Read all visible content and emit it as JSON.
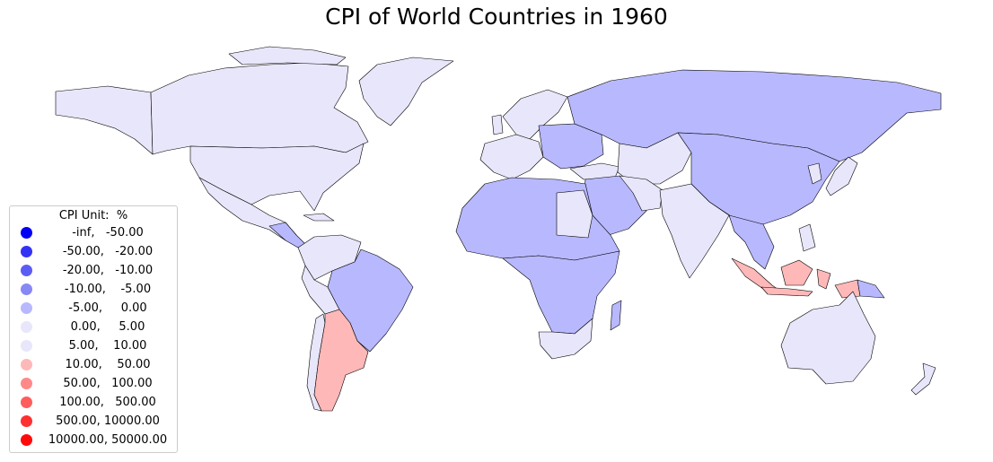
{
  "title": "CPI of World Countries in 1960",
  "legend": {
    "title": "CPI Unit:  %",
    "items": [
      {
        "label": "-inf,   -50.00",
        "color": "#0000f5"
      },
      {
        "label": "-50.00,   -20.00",
        "color": "#3333f5"
      },
      {
        "label": "-20.00,   -10.00",
        "color": "#5c5cf5"
      },
      {
        "label": "-10.00,    -5.00",
        "color": "#8888f5"
      },
      {
        "label": "-5.00,     0.00",
        "color": "#b8b8ff"
      },
      {
        "label": "0.00,     5.00",
        "color": "#e8e6fa"
      },
      {
        "label": "5.00,    10.00",
        "color": "#e8e6fa"
      },
      {
        "label": "10.00,    50.00",
        "color": "#ffb8b8"
      },
      {
        "label": "50.00,   100.00",
        "color": "#ff8888"
      },
      {
        "label": "100.00,   500.00",
        "color": "#ff5c5c"
      },
      {
        "label": "500.00, 10000.00",
        "color": "#ff3030"
      },
      {
        "label": "10000.00, 50000.00",
        "color": "#ff0a0a"
      }
    ]
  },
  "colors": {
    "low_positive": "#e8e6fa",
    "slight_negative": "#b8b8ff",
    "high_positive": "#ffb8b8",
    "border": "#000000"
  },
  "regions": [
    {
      "name": "North America",
      "band": "0.00, 5.00"
    },
    {
      "name": "Russia",
      "band": "-5.00, 0.00"
    },
    {
      "name": "China",
      "band": "-5.00, 0.00"
    },
    {
      "name": "Brazil",
      "band": "-5.00, 0.00"
    },
    {
      "name": "Argentina",
      "band": "10.00, 50.00"
    },
    {
      "name": "Indonesia",
      "band": "10.00, 50.00"
    },
    {
      "name": "Australia",
      "band": "0.00, 5.00"
    },
    {
      "name": "India",
      "band": "0.00, 5.00"
    },
    {
      "name": "Africa",
      "band": "-5.00, 0.00"
    }
  ]
}
